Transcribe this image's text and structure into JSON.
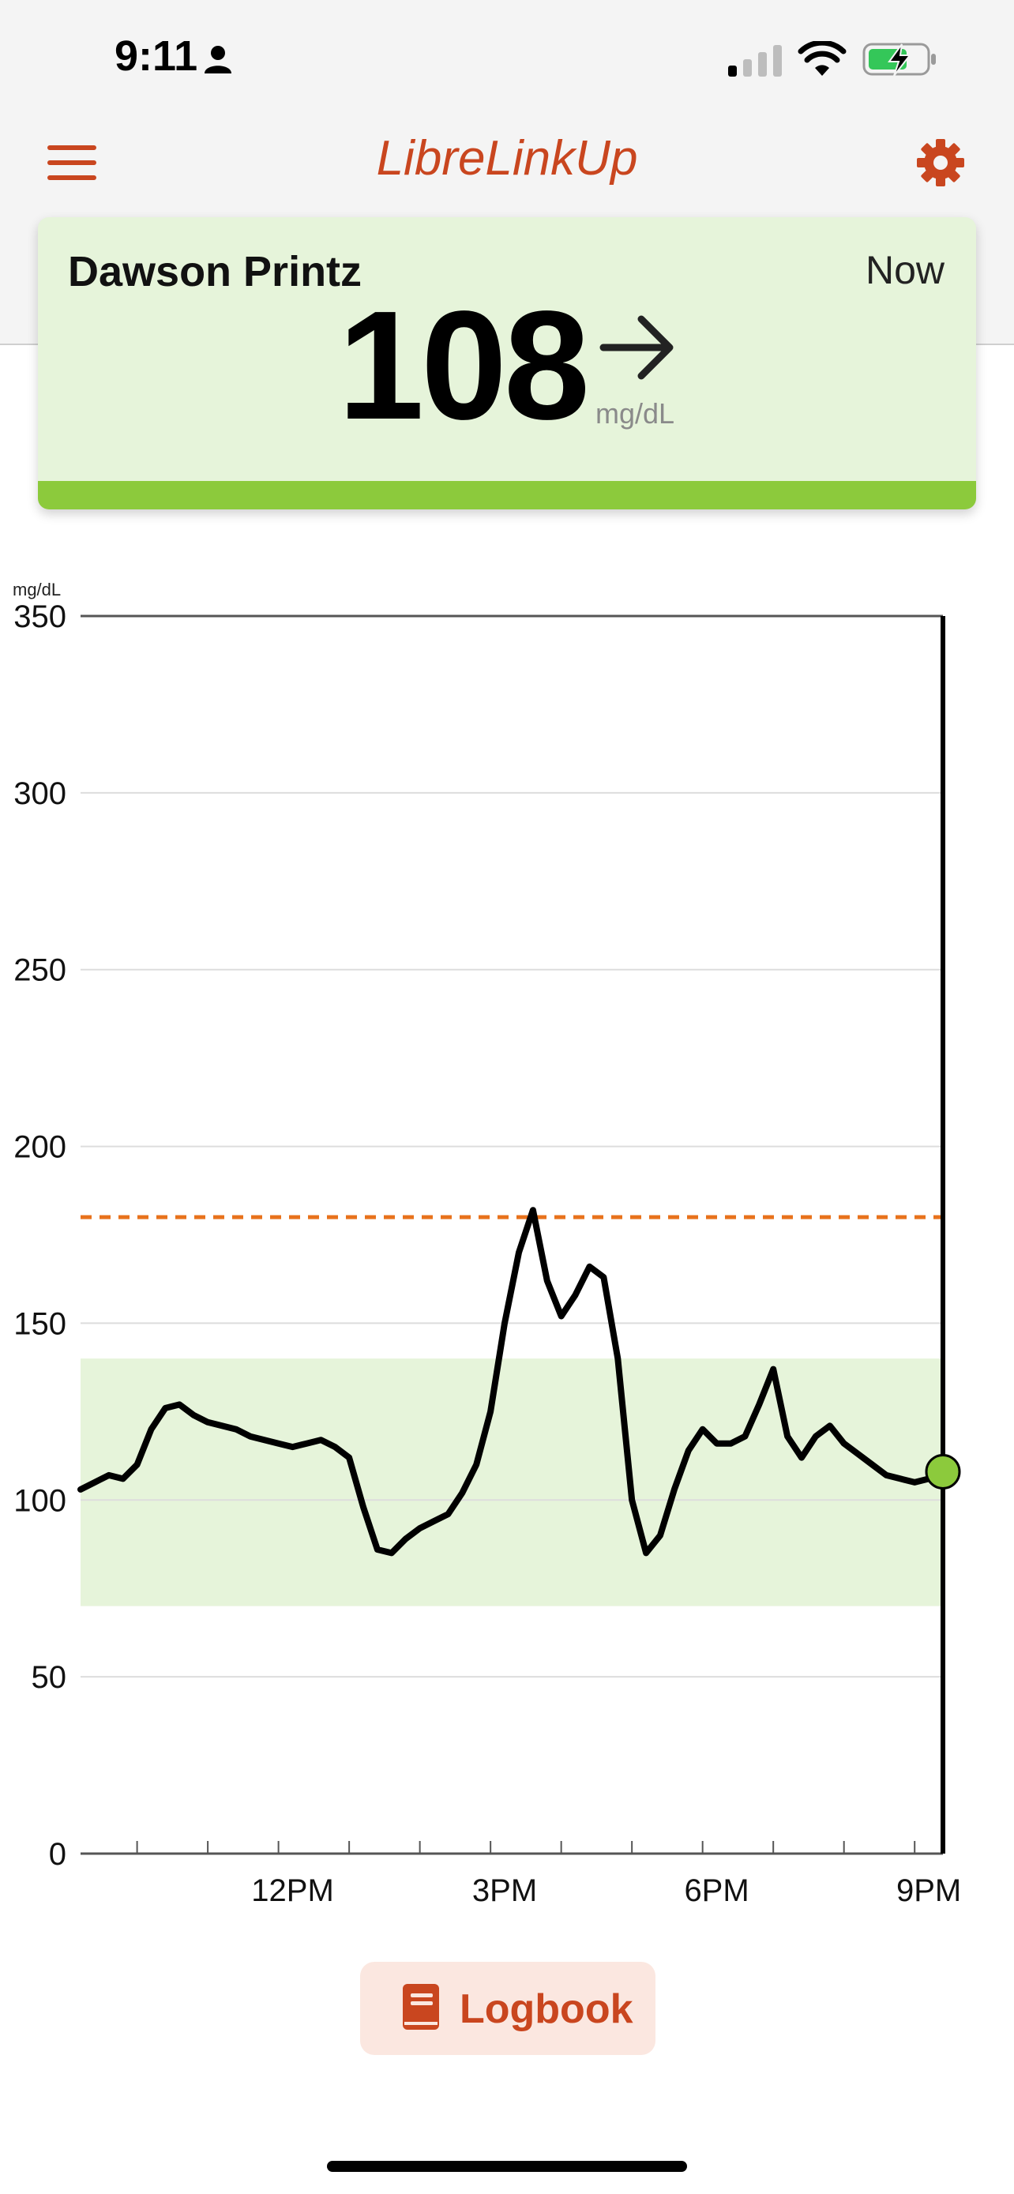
{
  "status_bar": {
    "time": "9:11"
  },
  "header": {
    "title": "LibreLinkUp"
  },
  "reading": {
    "patient_name": "Dawson Printz",
    "time": "Now",
    "value": "108",
    "unit": "mg/dL",
    "trend": "steady",
    "status_color": "#8cca3c"
  },
  "chart_data": {
    "type": "line",
    "ylabel": "mg/dL",
    "ylim": [
      0,
      350
    ],
    "yticks": [
      0,
      50,
      100,
      150,
      200,
      250,
      300,
      350
    ],
    "xlim": [
      9.0,
      21.2
    ],
    "xticks": [
      {
        "value": 12,
        "label": "12PM"
      },
      {
        "value": 15,
        "label": "3PM"
      },
      {
        "value": 18,
        "label": "6PM"
      },
      {
        "value": 21,
        "label": "9PM"
      }
    ],
    "x_minor_ticks": [
      9.8,
      10.8,
      11.8,
      12.8,
      13.8,
      14.8,
      15.8,
      16.8,
      17.8,
      18.8,
      19.8,
      20.8
    ],
    "target_range": [
      70,
      140
    ],
    "high_threshold": 180,
    "current_point": {
      "x": 21.2,
      "y": 108
    },
    "series": [
      {
        "x": [
          9.0,
          9.2,
          9.4,
          9.6,
          9.8,
          10.0,
          10.2,
          10.4,
          10.6,
          10.8,
          11.0,
          11.2,
          11.4,
          11.6,
          11.8,
          12.0,
          12.2,
          12.4,
          12.6,
          12.8,
          13.0,
          13.2,
          13.4,
          13.6,
          13.8,
          14.0,
          14.2,
          14.4,
          14.6,
          14.8,
          15.0,
          15.2,
          15.4,
          15.6,
          15.8,
          16.0,
          16.2,
          16.4,
          16.6,
          16.8,
          17.0,
          17.2,
          17.4,
          17.6,
          17.8,
          18.0,
          18.2,
          18.4,
          18.6,
          18.8,
          19.0,
          19.2,
          19.4,
          19.6,
          19.8,
          20.0,
          20.2,
          20.4,
          20.6,
          20.8,
          21.0,
          21.2
        ],
        "y": [
          103,
          105,
          107,
          106,
          110,
          120,
          126,
          127,
          124,
          122,
          121,
          120,
          118,
          117,
          116,
          115,
          116,
          117,
          115,
          112,
          98,
          86,
          85,
          89,
          92,
          94,
          96,
          102,
          110,
          125,
          150,
          170,
          182,
          162,
          152,
          158,
          166,
          163,
          140,
          100,
          85,
          90,
          103,
          114,
          120,
          116,
          116,
          118,
          127,
          137,
          118,
          112,
          118,
          121,
          116,
          113,
          110,
          107,
          106,
          105,
          106,
          108
        ]
      }
    ]
  }
}
